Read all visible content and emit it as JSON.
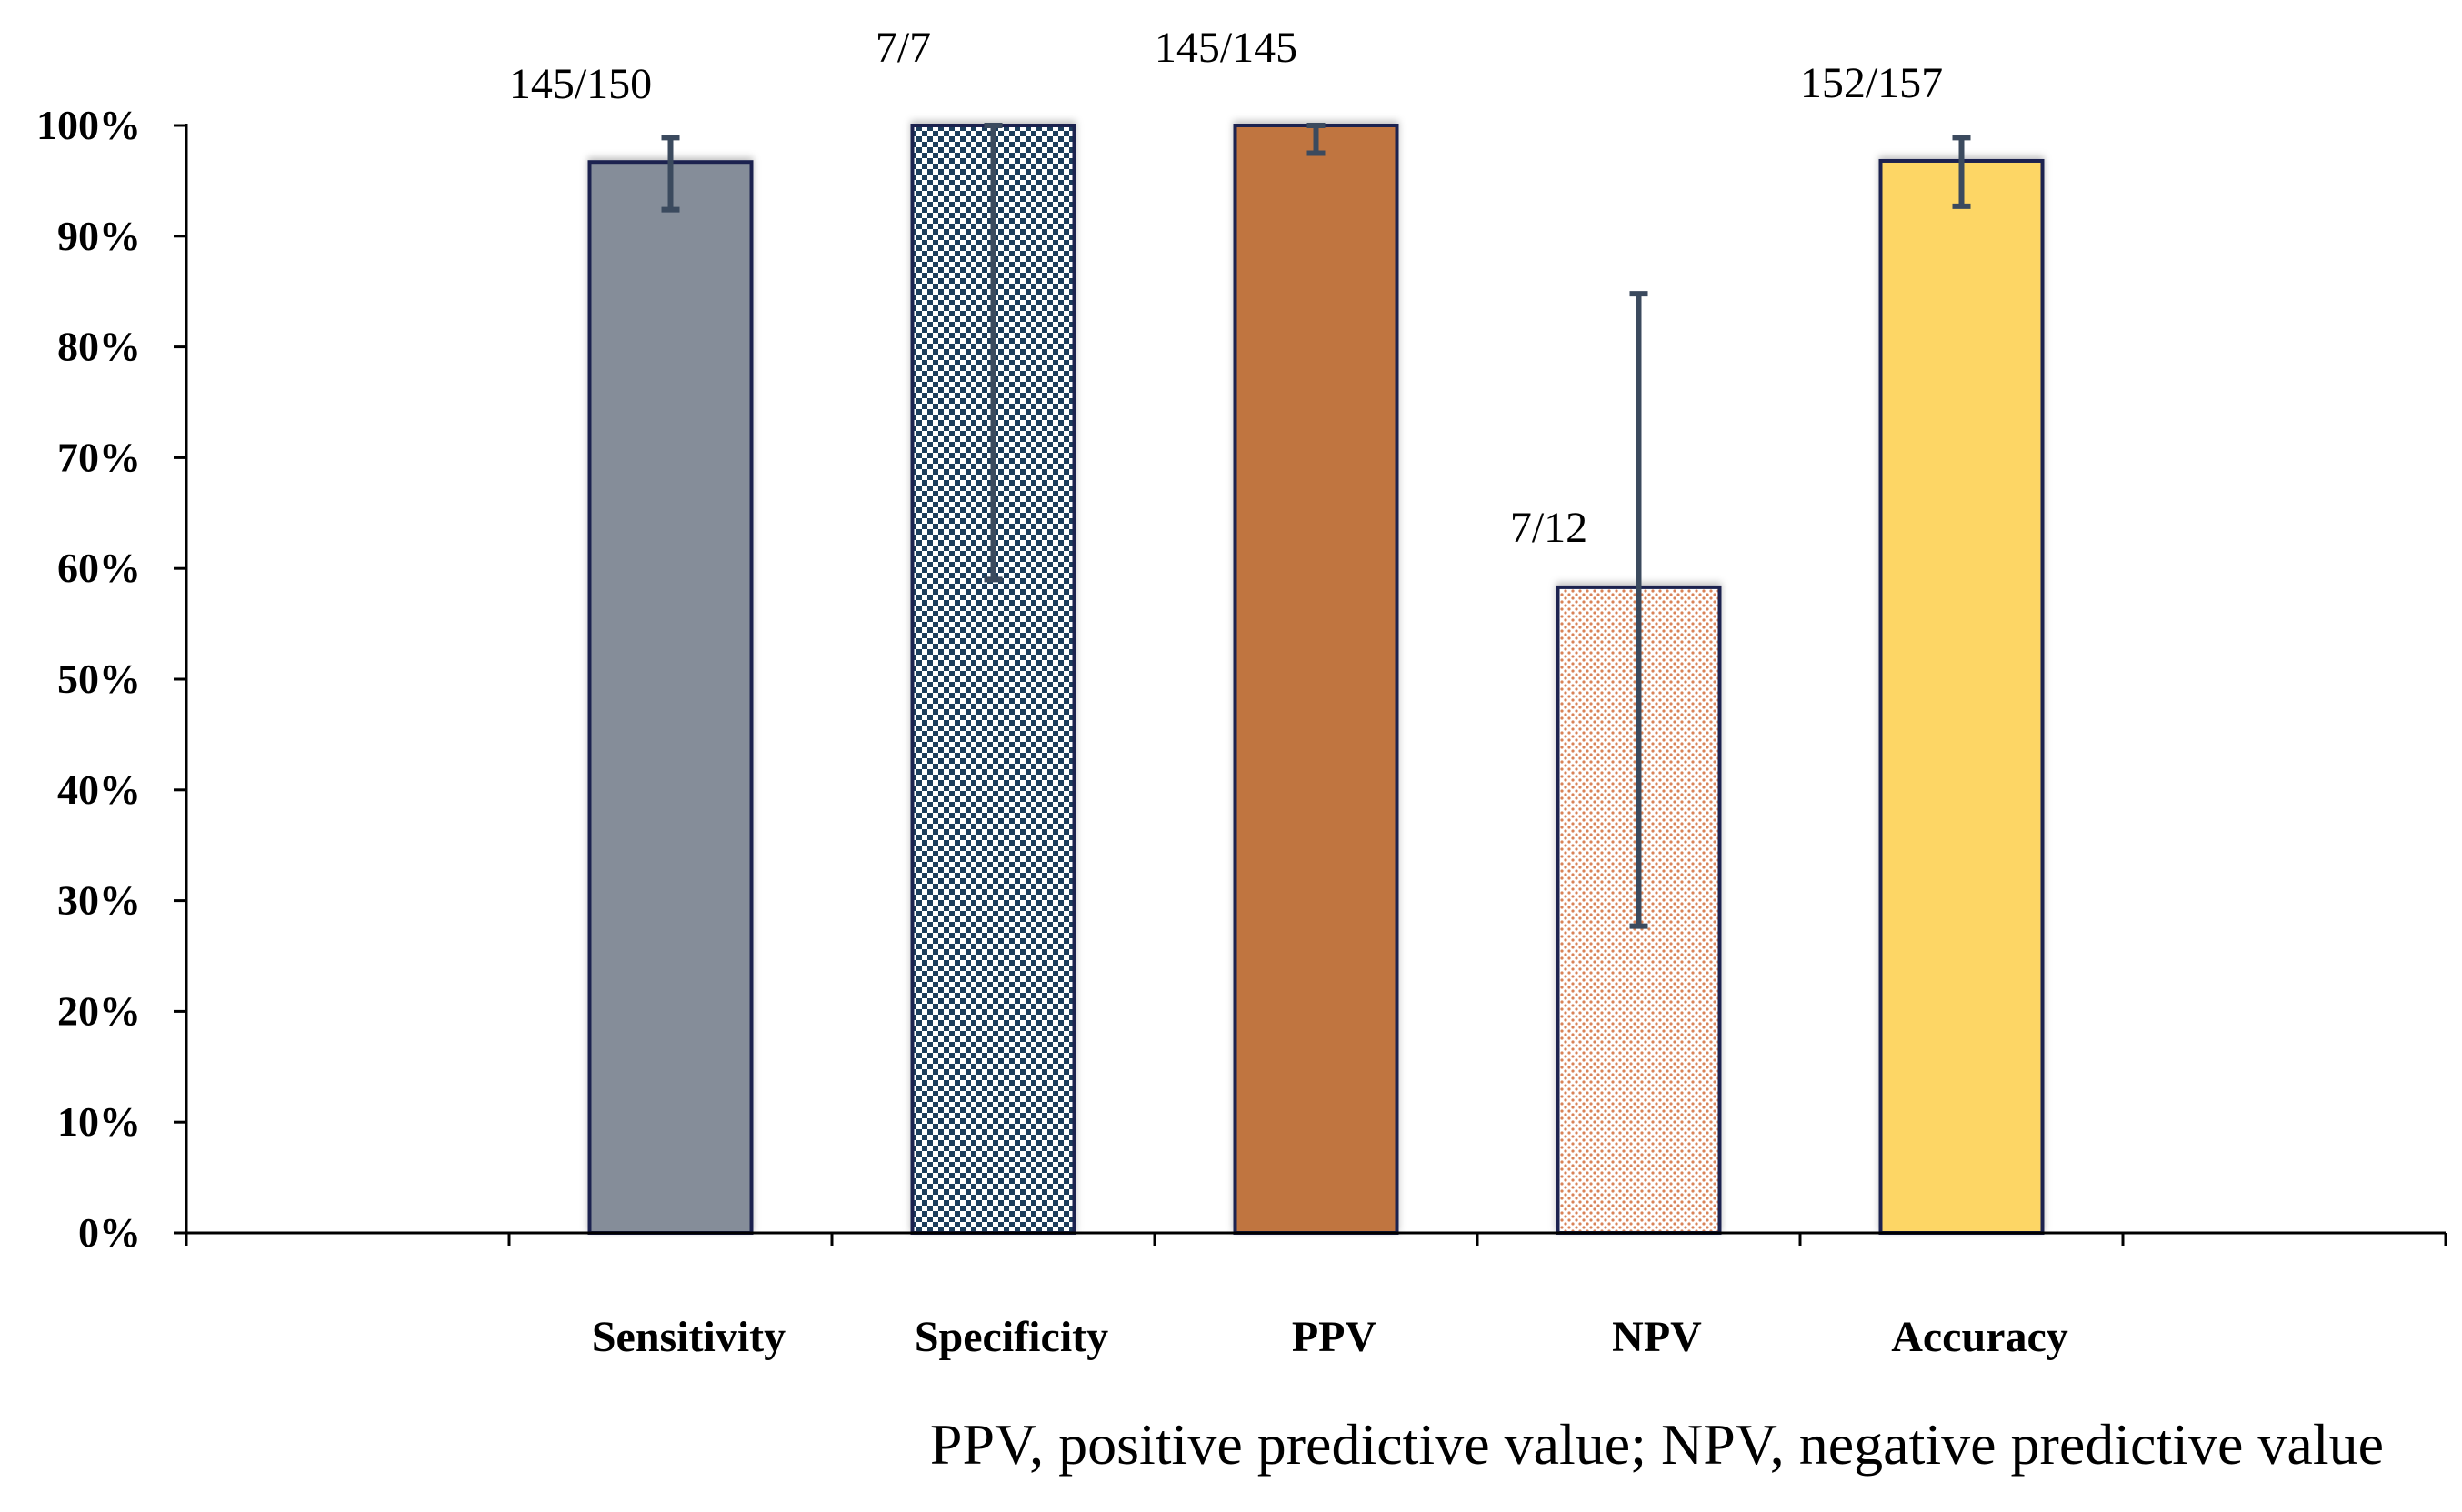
{
  "chart_data": {
    "type": "bar",
    "title": "",
    "xlabel": "",
    "ylabel": "",
    "ylim": [
      0,
      100
    ],
    "y_ticks": [
      "0%",
      "10%",
      "20%",
      "30%",
      "40%",
      "50%",
      "60%",
      "70%",
      "80%",
      "90%",
      "100%"
    ],
    "categories": [
      "Sensitivity",
      "Specificity",
      "PPV",
      "NPV",
      "Accuracy"
    ],
    "values": [
      96.7,
      100,
      100,
      58.3,
      96.8
    ],
    "error_low": [
      92.4,
      59.0,
      97.5,
      27.7,
      92.7
    ],
    "error_high": [
      98.9,
      100,
      100,
      84.8,
      98.9
    ],
    "data_labels": [
      "145/150",
      "7/7",
      "145/145",
      "7/12",
      "152/157"
    ],
    "grid": false,
    "legend": "none",
    "footnote": "PPV, positive predictive value; NPV, negative predictive value"
  },
  "colors": {
    "bar_fills": [
      "#858d99",
      "#1f3c5c",
      "#c07540",
      "#ffffff",
      "#fdd665"
    ],
    "bar_patterns": [
      "solid",
      "checker",
      "solid",
      "dots",
      "solid"
    ],
    "pattern_light": [
      "",
      "#ffffff",
      "",
      "",
      ""
    ],
    "pattern_dot": [
      "",
      "",
      "",
      "#d98358",
      ""
    ],
    "bar_outline": "#1b2450",
    "error_bar": "#3b4a5e",
    "axis": "#000000"
  }
}
